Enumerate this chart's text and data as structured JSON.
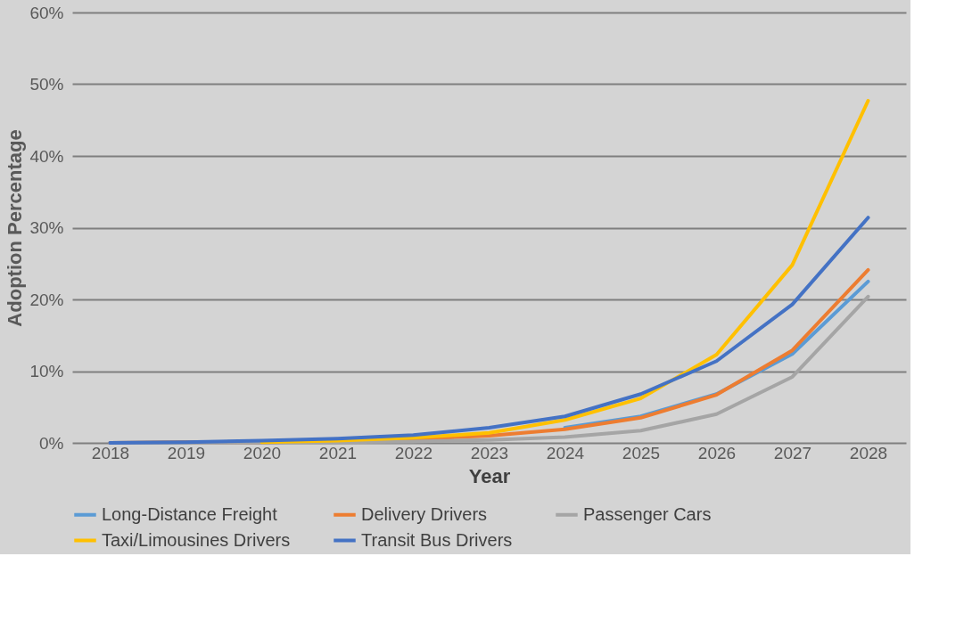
{
  "chart_data": {
    "type": "line",
    "xlabel": "Year",
    "ylabel": "Adoption Percentage",
    "categories": [
      "2018",
      "2019",
      "2020",
      "2021",
      "2022",
      "2023",
      "2024",
      "2025",
      "2026",
      "2027",
      "2028"
    ],
    "series": [
      {
        "name": "Long-Distance Freight",
        "color": "#5b9bd5",
        "values": [
          0,
          0.1,
          0.1,
          0.2,
          0.5,
          null,
          2.1,
          3.7,
          6.8,
          12.4,
          22.5
        ]
      },
      {
        "name": "Delivery Drivers",
        "color": "#ed7d31",
        "values": [
          0,
          0.1,
          0.1,
          0.2,
          0.5,
          1.0,
          1.9,
          3.5,
          6.7,
          12.9,
          24.1
        ]
      },
      {
        "name": "Passenger Cars",
        "color": "#a5a5a5",
        "values": [
          0,
          0.0,
          0.1,
          0.1,
          0.2,
          0.4,
          0.8,
          1.7,
          4.0,
          9.2,
          20.4
        ]
      },
      {
        "name": "Taxi/Limousines Drivers",
        "color": "#ffc000",
        "values": [
          null,
          null,
          0.1,
          0.3,
          0.7,
          1.4,
          3.2,
          6.2,
          12.3,
          24.8,
          47.7
        ]
      },
      {
        "name": "Transit Bus Drivers",
        "color": "#4472c4",
        "values": [
          0,
          0.1,
          0.3,
          0.6,
          1.1,
          2.1,
          3.7,
          6.8,
          11.4,
          19.3,
          31.4
        ]
      }
    ],
    "ylim": [
      0,
      60
    ],
    "yticks": [
      {
        "value": 0,
        "label": "0%"
      },
      {
        "value": 10,
        "label": "10%"
      },
      {
        "value": 20,
        "label": "20%"
      },
      {
        "value": 30,
        "label": "30%"
      },
      {
        "value": 40,
        "label": "40%"
      },
      {
        "value": 50,
        "label": "50%"
      },
      {
        "value": 60,
        "label": "60%"
      }
    ],
    "grid": "y",
    "legend": "bottom",
    "marker": "none",
    "line_style": "solid"
  }
}
